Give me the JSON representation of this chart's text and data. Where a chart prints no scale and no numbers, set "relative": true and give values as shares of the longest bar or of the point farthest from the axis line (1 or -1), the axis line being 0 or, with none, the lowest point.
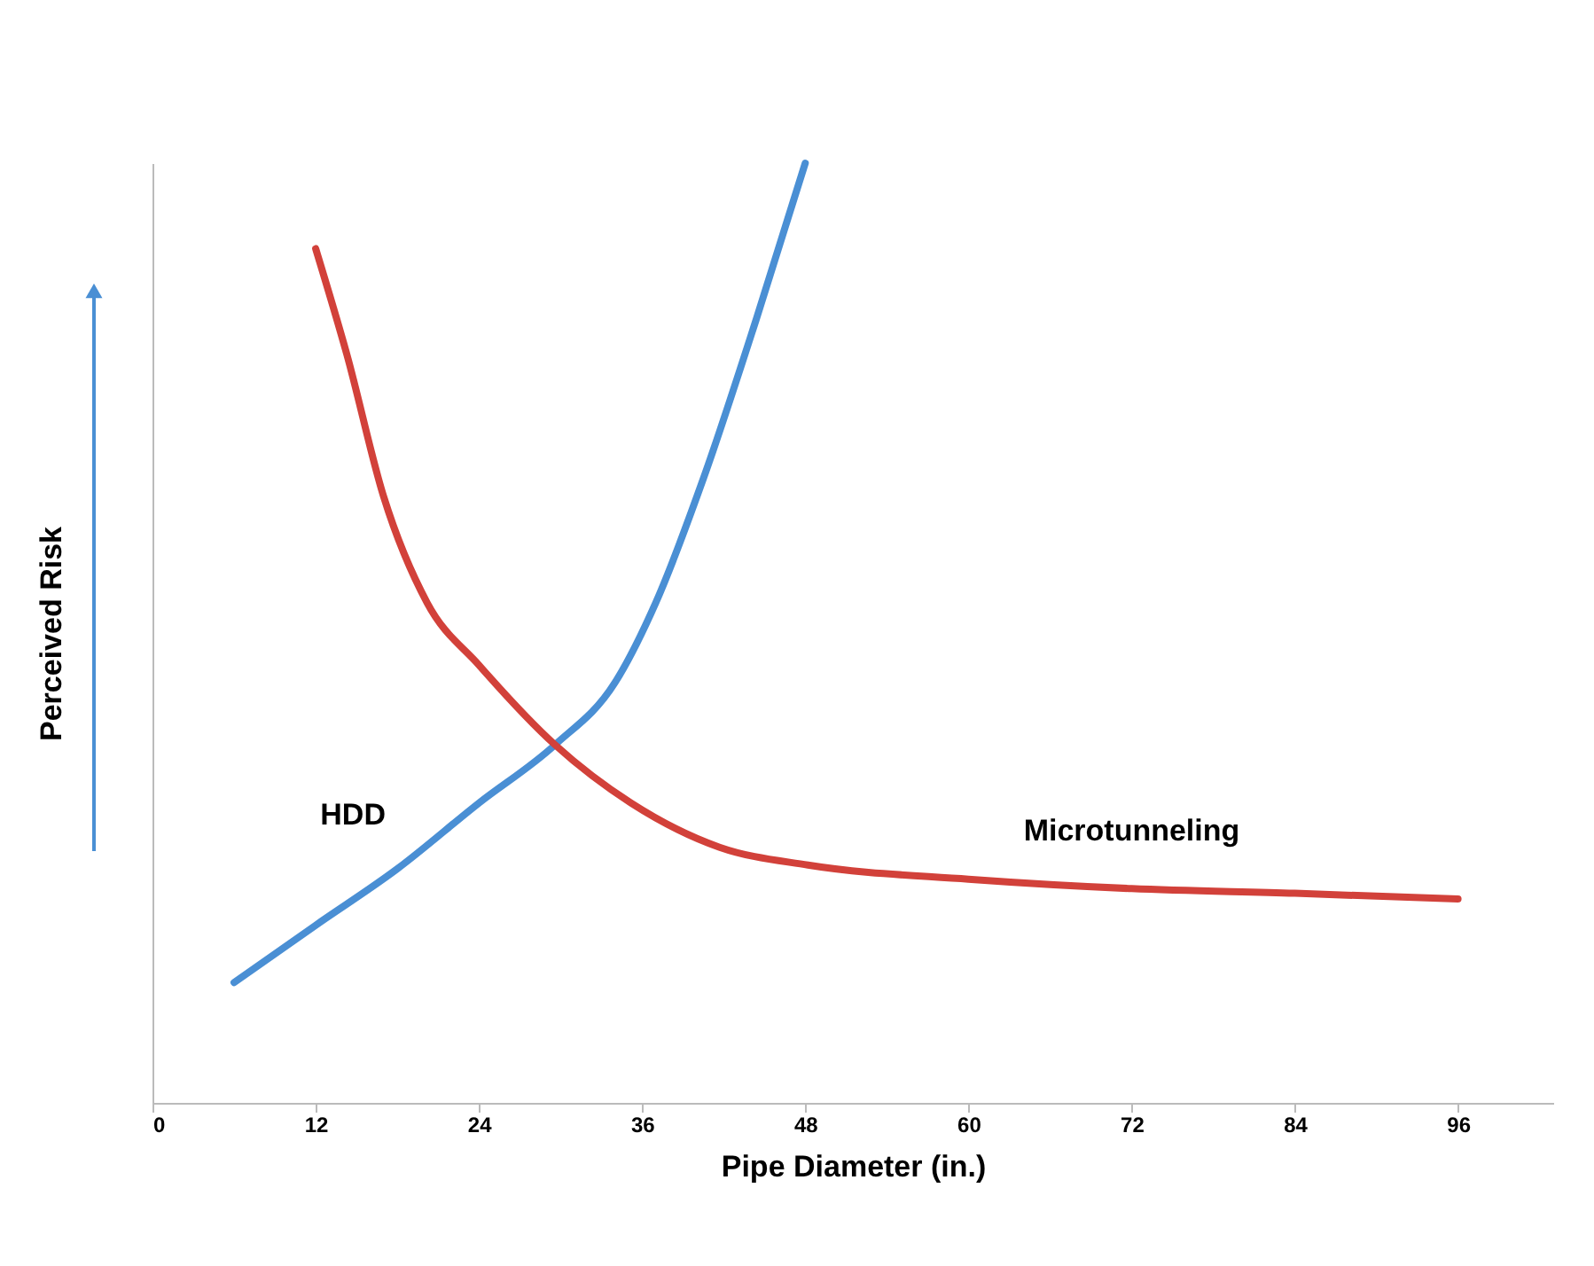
{
  "chart_data": {
    "type": "line",
    "relative": true,
    "xlabel": "Pipe Diameter (in.)",
    "ylabel": "Perceived Risk",
    "xlim": [
      0,
      103
    ],
    "xticks": [
      0,
      12,
      24,
      36,
      48,
      60,
      72,
      84,
      96
    ],
    "grid": false,
    "legend": false,
    "marker": "none",
    "line_style": "solid",
    "series": [
      {
        "name": "HDD",
        "color": "#4a8fd4",
        "x": [
          6,
          12,
          18,
          24,
          29.6,
          34,
          37,
          40.5,
          44.4,
          48
        ],
        "values": [
          0.128,
          0.189,
          0.249,
          0.319,
          0.381,
          0.447,
          0.532,
          0.664,
          0.834,
          1
        ]
      },
      {
        "name": "Microtunneling",
        "color": "#d2413a",
        "x": [
          12,
          14.3,
          17,
          20.2,
          24,
          29.6,
          35.2,
          41.7,
          48.2,
          60,
          72,
          84,
          96
        ],
        "values": [
          0.909,
          0.796,
          0.645,
          0.532,
          0.466,
          0.381,
          0.319,
          0.272,
          0.253,
          0.238,
          0.228,
          0.223,
          0.217
        ]
      }
    ]
  }
}
